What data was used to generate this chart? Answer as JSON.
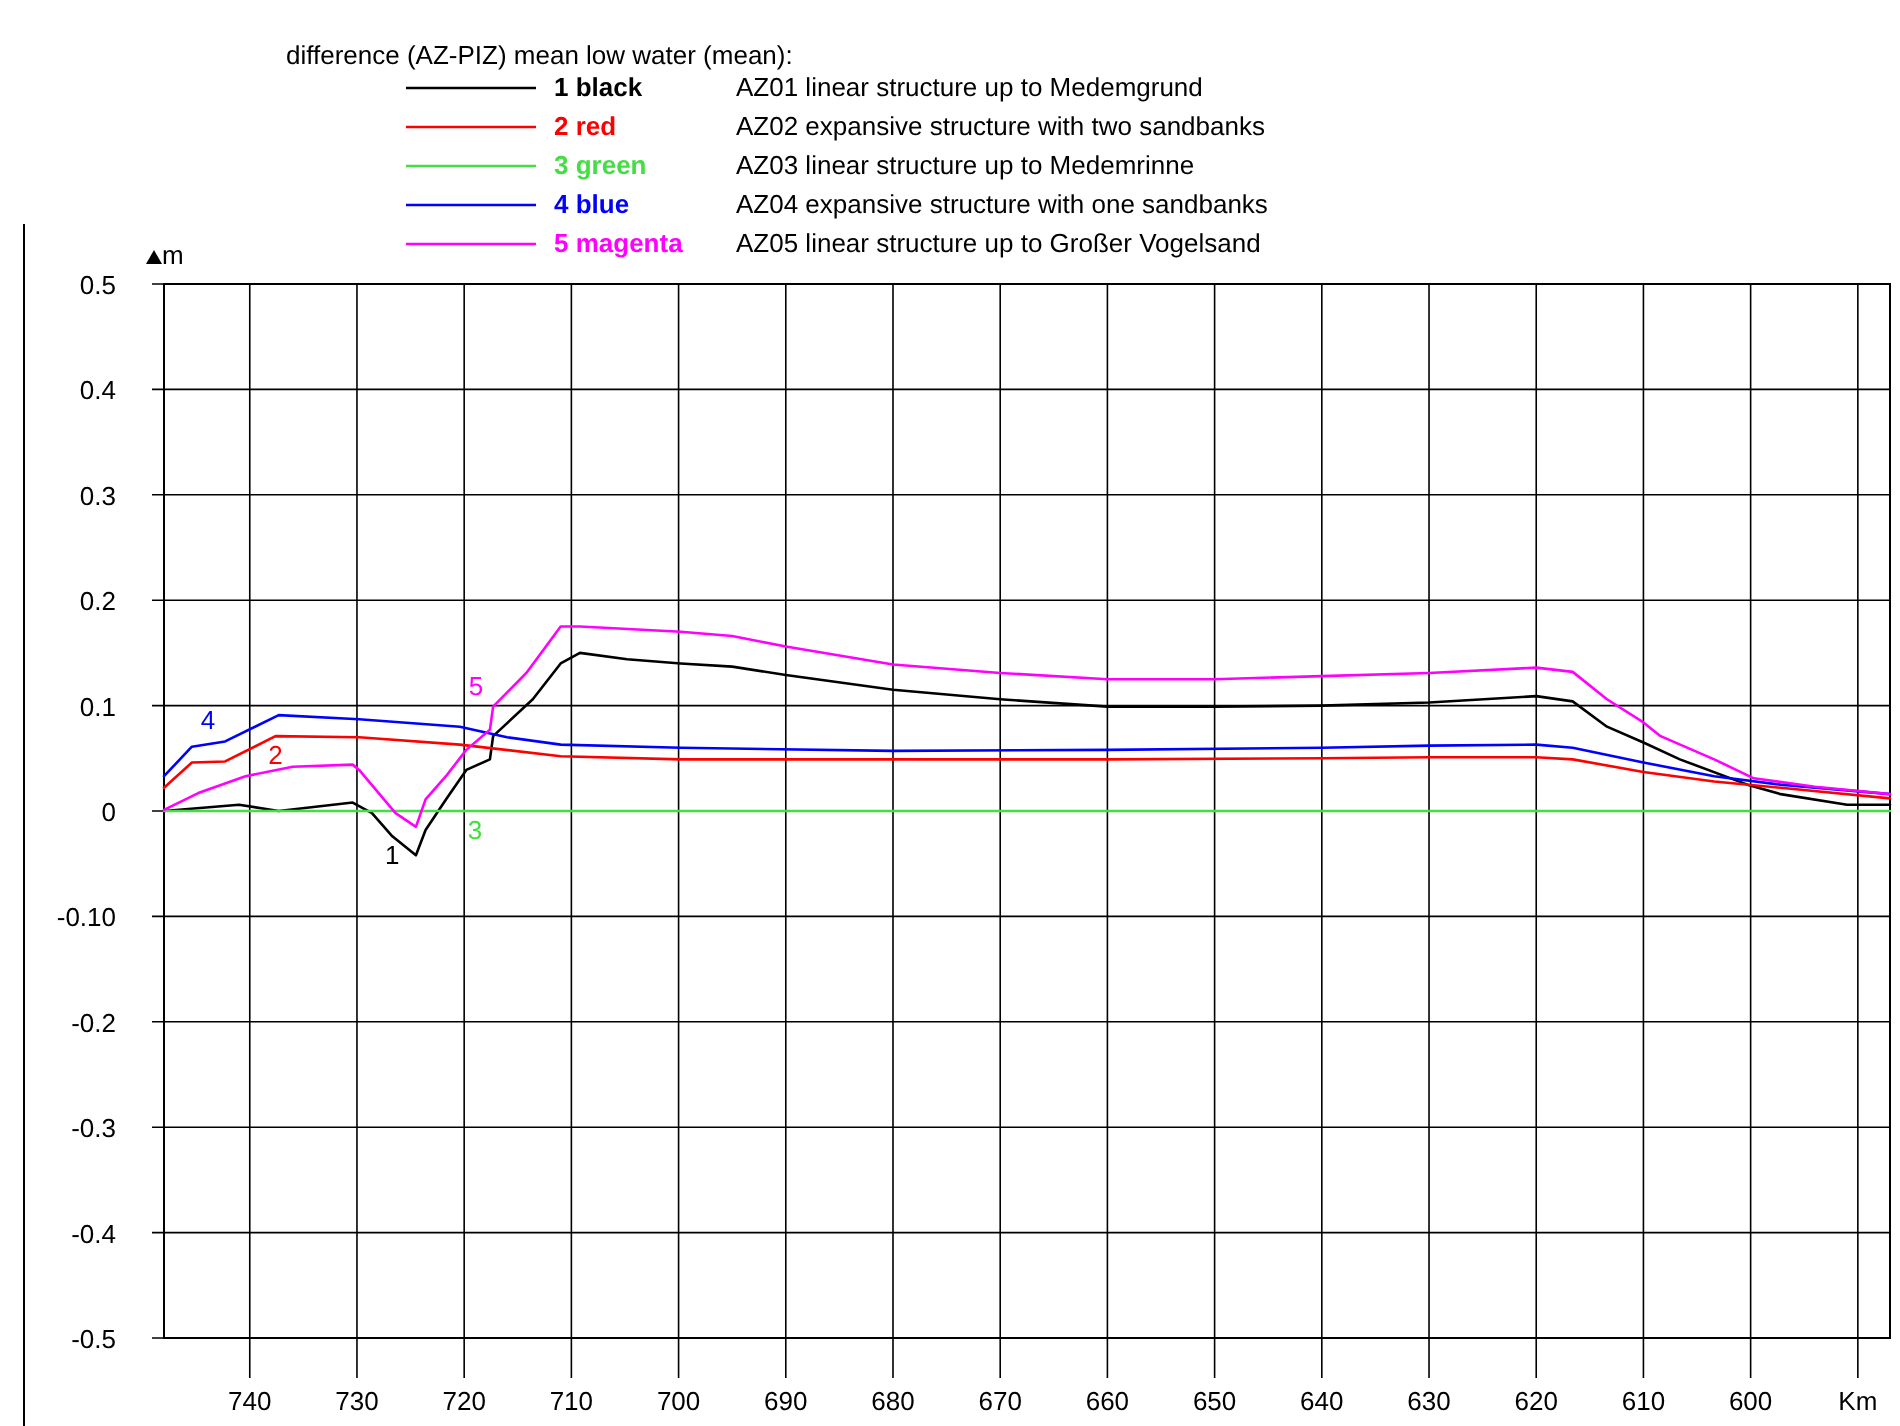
{
  "chart_data": {
    "type": "line",
    "legend_title": "difference (AZ-PIZ) mean low water (mean):",
    "ylabel": "m",
    "xlim": [
      748,
      587
    ],
    "ylim": [
      -0.5,
      0.5
    ],
    "xticks": [
      740,
      730,
      720,
      710,
      700,
      690,
      680,
      670,
      660,
      650,
      640,
      630,
      620,
      610,
      600,
      {
        "value": 590,
        "label": "Km"
      }
    ],
    "yticks": [
      0.5,
      0.4,
      0.3,
      0.2,
      0.1,
      0,
      {
        "value": -0.1,
        "label": "-0.10"
      },
      -0.2,
      -0.3,
      -0.4,
      -0.5
    ],
    "grid": true,
    "legend": "top",
    "line_style": "solid",
    "marker": "none",
    "series": [
      {
        "name": "1 black",
        "color": "#000000",
        "x": [
          748,
          741,
          737.3,
          730.4,
          728.6,
          726.7,
          724.5,
          723.6,
          721.7,
          719.8,
          717.6,
          717.3,
          713.6,
          711,
          709.2,
          704.8,
          699.8,
          695,
          690,
          680,
          670,
          660,
          650,
          640,
          630,
          620,
          616.6,
          613.4,
          610,
          606.6,
          600.3,
          597.2,
          591,
          587
        ],
        "values": [
          0,
          0.006,
          0,
          0.008,
          -0.002,
          -0.024,
          -0.042,
          -0.018,
          0.011,
          0.039,
          0.049,
          0.071,
          0.106,
          0.14,
          0.15,
          0.144,
          0.14,
          0.137,
          0.129,
          0.115,
          0.106,
          0.099,
          0.099,
          0.1,
          0.103,
          0.109,
          0.104,
          0.08,
          0.065,
          0.049,
          0.025,
          0.016,
          0.006,
          0.006
        ]
      },
      {
        "name": "2 red",
        "color": "#ff0000",
        "x": [
          748,
          745.4,
          742.3,
          737.6,
          729.8,
          720.4,
          711,
          699.8,
          680,
          660,
          640,
          630,
          620,
          616.6,
          610,
          603.4,
          597.2,
          587
        ],
        "values": [
          0.022,
          0.046,
          0.047,
          0.071,
          0.07,
          0.063,
          0.052,
          0.049,
          0.049,
          0.049,
          0.05,
          0.051,
          0.051,
          0.049,
          0.037,
          0.028,
          0.022,
          0.012
        ]
      },
      {
        "name": "3 green",
        "color": "#44dd44",
        "x": [
          748,
          719,
          587
        ],
        "values": [
          0,
          0,
          0
        ]
      },
      {
        "name": "4 blue",
        "color": "#0000ff",
        "x": [
          748,
          745.4,
          742.3,
          737.3,
          729.8,
          720.4,
          716,
          711,
          699.8,
          680,
          660,
          640,
          630,
          620,
          616.6,
          610,
          603.4,
          597.2,
          587
        ],
        "values": [
          0.033,
          0.061,
          0.066,
          0.091,
          0.087,
          0.08,
          0.07,
          0.063,
          0.06,
          0.057,
          0.058,
          0.06,
          0.062,
          0.063,
          0.06,
          0.046,
          0.033,
          0.025,
          0.016
        ]
      },
      {
        "name": "5 magenta",
        "color": "#ff00ff",
        "x": [
          748,
          744.8,
          740.4,
          736,
          730.4,
          729.8,
          726.4,
          724.5,
          723.6,
          721.7,
          719.8,
          717.6,
          717.3,
          714.2,
          711,
          709.2,
          699.8,
          695,
          690,
          680,
          670,
          660,
          650,
          640,
          630,
          620,
          616.6,
          613.4,
          610,
          608.4,
          603.4,
          599.7,
          594,
          587
        ],
        "values": [
          0.001,
          0.017,
          0.033,
          0.042,
          0.044,
          0.039,
          -0.002,
          -0.015,
          0.011,
          0.033,
          0.058,
          0.077,
          0.099,
          0.131,
          0.175,
          0.175,
          0.17,
          0.166,
          0.156,
          0.139,
          0.131,
          0.125,
          0.125,
          0.128,
          0.131,
          0.136,
          0.132,
          0.106,
          0.084,
          0.071,
          0.049,
          0.031,
          0.023,
          0.016
        ]
      }
    ],
    "annotations": [
      "AZ01 linear structure up to Medemgrund",
      "AZ02 expansive structure with two sandbanks",
      "AZ03 linear structure up to Medemrinne",
      "AZ04 expansive structure with one sandbanks",
      "AZ05 linear structure up to Großer Vogelsand",
      {
        "text": "1",
        "x": 726.7,
        "y": -0.024
      },
      {
        "text": "2",
        "x": 737.6,
        "y": 0.071
      },
      {
        "text": "3",
        "x": 719,
        "y": 0
      },
      {
        "text": "4",
        "x": 742.3,
        "y": 0.066
      },
      {
        "text": "5",
        "x": 717.3,
        "y": 0.099
      }
    ]
  }
}
